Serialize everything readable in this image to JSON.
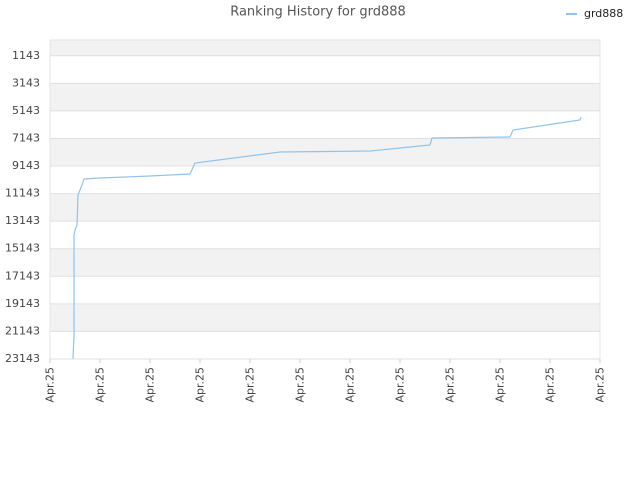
{
  "chart_data": {
    "type": "line",
    "title": "Ranking History for grd888",
    "x": [
      0.46,
      0.48,
      0.48,
      0.5,
      0.54,
      0.56,
      0.64,
      0.68,
      1.0,
      2.0,
      2.8,
      2.9,
      4.6,
      6.4,
      7.0,
      7.6,
      7.64,
      9.2,
      9.26,
      10.2,
      10.6,
      10.62
    ],
    "series": [
      {
        "name": "grd888",
        "color": "#90c4ee",
        "values": [
          23143,
          21402,
          14147,
          13800,
          13422,
          11245,
          10520,
          10084,
          10012,
          9867,
          9722,
          8924,
          8126,
          8053,
          7835,
          7618,
          7110,
          7037,
          6530,
          6022,
          5804,
          5586
        ]
      }
    ],
    "xlim": [
      0,
      11
    ],
    "xticks": [
      {
        "value": 0,
        "label": "Apr.25"
      },
      {
        "value": 1,
        "label": "Apr.25"
      },
      {
        "value": 2,
        "label": "Apr.25"
      },
      {
        "value": 3,
        "label": "Apr.25"
      },
      {
        "value": 4,
        "label": "Apr.25"
      },
      {
        "value": 5,
        "label": "Apr.25"
      },
      {
        "value": 6,
        "label": "Apr.25"
      },
      {
        "value": 7,
        "label": "Apr.25"
      },
      {
        "value": 8,
        "label": "Apr.25"
      },
      {
        "value": 9,
        "label": "Apr.25"
      },
      {
        "value": 10,
        "label": "Apr.25"
      },
      {
        "value": 11,
        "label": "Apr.25"
      }
    ],
    "ylim": [
      23143,
      0
    ],
    "yticks": [
      1143,
      3143,
      5143,
      7143,
      9143,
      11143,
      13143,
      15143,
      17143,
      19143,
      21143,
      23143
    ],
    "grid": true,
    "legend": "top-right"
  }
}
